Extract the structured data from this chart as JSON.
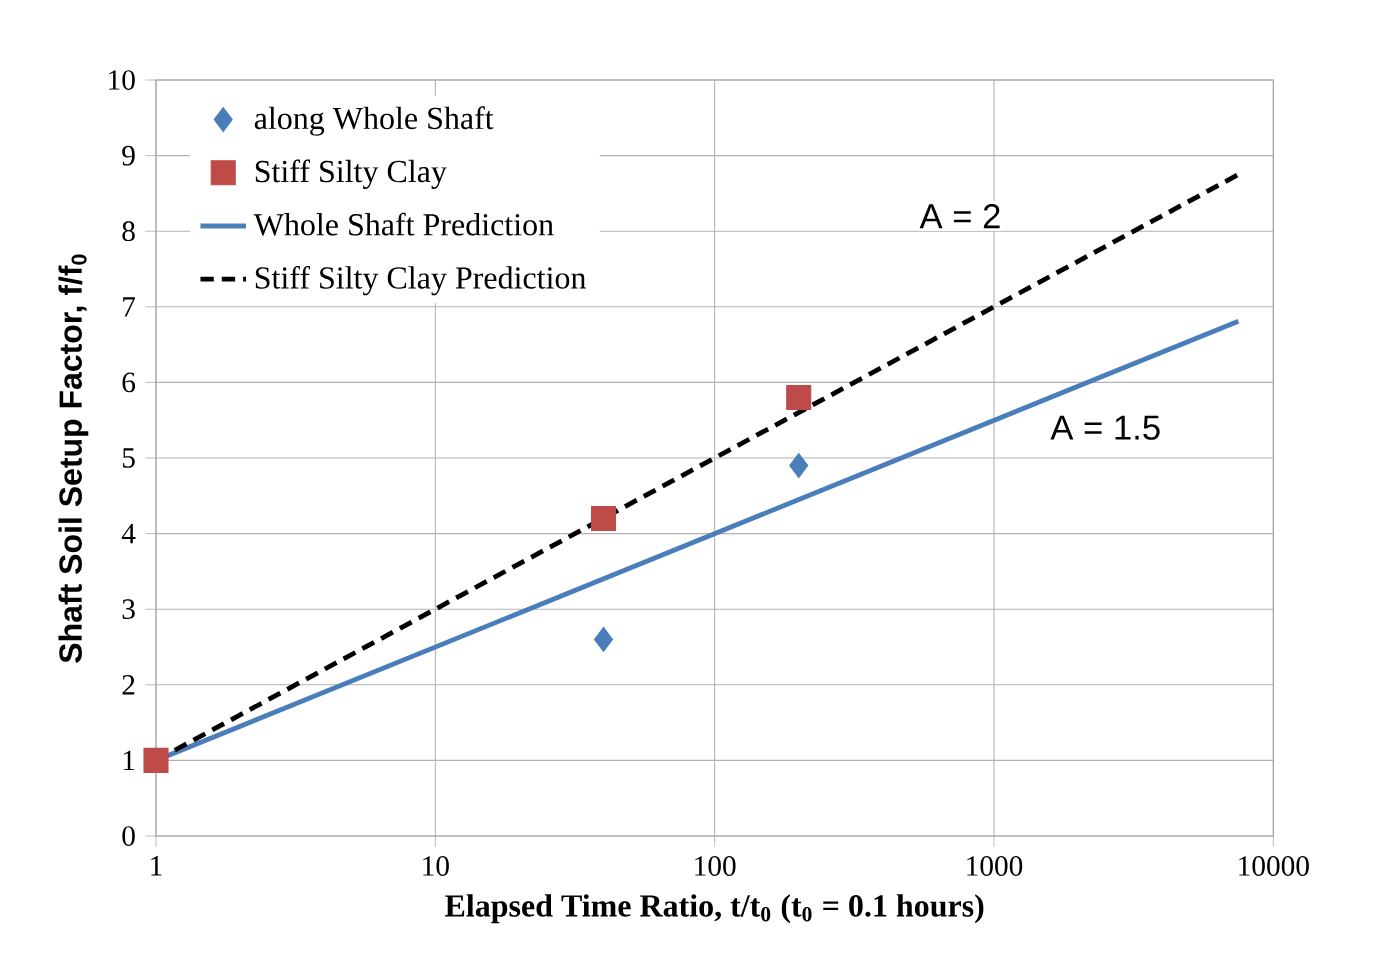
{
  "chart_data": {
    "type": "scatter",
    "xlabel": "Elapsed Time Ratio, t/t$_{0}$ (t$_{0}$ = 0.1 hours)",
    "ylabel": "Shaft Soil Setup Factor, f/f$_{0}$",
    "log": "x",
    "grid": true,
    "legend": "top left",
    "xlim": [
      1,
      10000
    ],
    "xticks": [
      1,
      10,
      100,
      1000,
      10000
    ],
    "ylim": [
      0,
      10
    ],
    "yticks": [
      0,
      1,
      2,
      3,
      4,
      5,
      6,
      7,
      8,
      9,
      10
    ],
    "series": [
      {
        "name": "along Whole Shaft",
        "marker": "diamond",
        "color": "#4a7ebb",
        "x": [
          40,
          200
        ],
        "values": [
          2.6,
          4.9
        ]
      },
      {
        "name": "Stiff Silty Clay",
        "marker": "square",
        "color": "#be4b48",
        "x": [
          1,
          40,
          200
        ],
        "values": [
          1,
          4.2,
          5.8
        ]
      },
      {
        "name": "Whole Shaft Prediction",
        "type": "line",
        "marker": "none",
        "line_style": "solid",
        "color": "#4a7ebb",
        "x": [
          1,
          7500
        ],
        "values": [
          1,
          6.81
        ]
      },
      {
        "name": "Stiff Silty Clay Prediction",
        "type": "line",
        "marker": "none",
        "line_style": "dashed",
        "color": "#000000",
        "x": [
          1,
          7500
        ],
        "values": [
          1,
          8.75
        ]
      }
    ],
    "annotations": [
      "A = 2",
      "A = 1.5"
    ]
  }
}
